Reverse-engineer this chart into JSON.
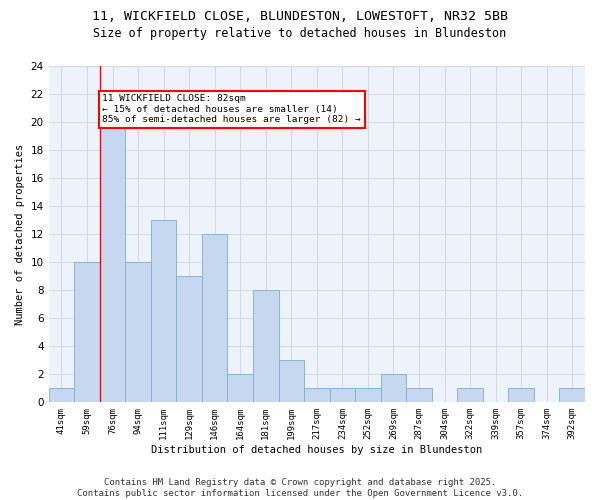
{
  "title_line1": "11, WICKFIELD CLOSE, BLUNDESTON, LOWESTOFT, NR32 5BB",
  "title_line2": "Size of property relative to detached houses in Blundeston",
  "xlabel": "Distribution of detached houses by size in Blundeston",
  "ylabel": "Number of detached properties",
  "bin_labels": [
    "41sqm",
    "59sqm",
    "76sqm",
    "94sqm",
    "111sqm",
    "129sqm",
    "146sqm",
    "164sqm",
    "181sqm",
    "199sqm",
    "217sqm",
    "234sqm",
    "252sqm",
    "269sqm",
    "287sqm",
    "304sqm",
    "322sqm",
    "339sqm",
    "357sqm",
    "374sqm",
    "392sqm"
  ],
  "bar_values": [
    1,
    10,
    20,
    10,
    13,
    9,
    12,
    2,
    8,
    3,
    1,
    1,
    1,
    2,
    1,
    0,
    1,
    0,
    1,
    0,
    1
  ],
  "bar_color": "#c5d8f0",
  "bar_edge_color": "#7aafd4",
  "grid_color": "#d0d8e8",
  "background_color": "#edf2fb",
  "annotation_text": "11 WICKFIELD CLOSE: 82sqm\n← 15% of detached houses are smaller (14)\n85% of semi-detached houses are larger (82) →",
  "annotation_box_color": "white",
  "annotation_box_edge_color": "red",
  "redline_x": 1.5,
  "ylim": [
    0,
    24
  ],
  "yticks": [
    0,
    2,
    4,
    6,
    8,
    10,
    12,
    14,
    16,
    18,
    20,
    22,
    24
  ],
  "footnote": "Contains HM Land Registry data © Crown copyright and database right 2025.\nContains public sector information licensed under the Open Government Licence v3.0.",
  "footnote_fontsize": 6.5,
  "title_fontsize1": 9.5,
  "title_fontsize2": 8.5
}
